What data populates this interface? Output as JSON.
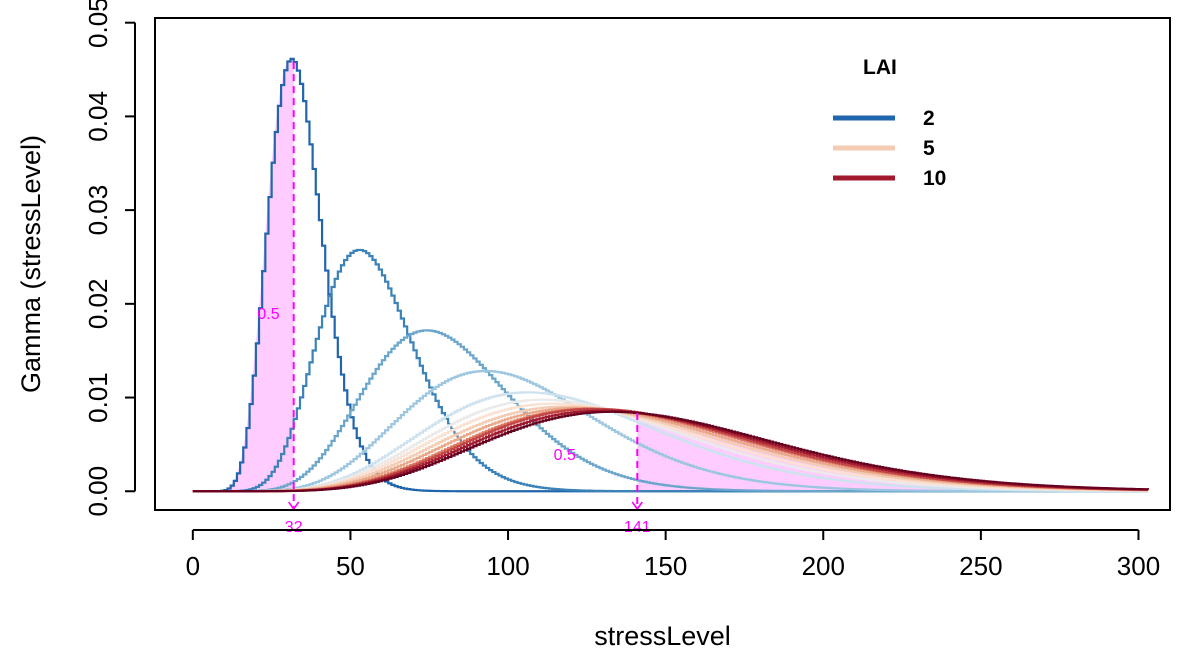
{
  "chart_data": {
    "type": "line",
    "xlabel": "stressLevel",
    "ylabel": "Gamma (stressLevel)",
    "xlim": [
      -12,
      310
    ],
    "ylim": [
      -0.002,
      0.0505
    ],
    "x_ticks": [
      0,
      50,
      100,
      150,
      200,
      250,
      300
    ],
    "y_ticks": [
      0.0,
      0.01,
      0.02,
      0.03,
      0.04,
      0.05
    ],
    "y_tick_labels": [
      "0.00",
      "0.01",
      "0.02",
      "0.03",
      "0.04",
      "0.05"
    ],
    "grid": false,
    "legend": {
      "title": "LAI",
      "position": "top-right",
      "entries": [
        {
          "label": "2",
          "color": "#2166ac"
        },
        {
          "label": "5",
          "color": "#f4cbb3"
        },
        {
          "label": "10",
          "color": "#a11a2e"
        }
      ]
    },
    "series": [
      {
        "shape": 13.97,
        "rate": 0.4192,
        "color": "#2166ac"
      },
      {
        "shape": 12.61,
        "rate": 0.2216,
        "color": "#3a82b8"
      },
      {
        "shape": 11.25,
        "rate": 0.1389,
        "color": "#6aa6cc"
      },
      {
        "shape": 10.0,
        "rate": 0.0974,
        "color": "#9cc6e0"
      },
      {
        "shape": 9.0,
        "rate": 0.0756,
        "color": "#cde2ee"
      },
      {
        "shape": 8.5,
        "rate": 0.0678,
        "color": "#eaeaea"
      },
      {
        "shape": 8.3,
        "rate": 0.064,
        "color": "#fae1d2"
      },
      {
        "shape": 8.3,
        "rate": 0.0619,
        "color": "#f4cbb3"
      },
      {
        "shape": 8.5,
        "rate": 0.0617,
        "color": "#eaa88a"
      },
      {
        "shape": 8.8,
        "rate": 0.0623,
        "color": "#dc7b62"
      },
      {
        "shape": 9.0,
        "rate": 0.063,
        "color": "#c44546"
      },
      {
        "shape": 9.0,
        "rate": 0.0617,
        "color": "#a11a2e"
      },
      {
        "shape": 9.1,
        "rate": 0.0611,
        "color": "#67001f"
      }
    ],
    "annotations": [
      {
        "kind": "median",
        "x": 32,
        "label": "32",
        "area_label": "0.5",
        "area_label_x": 24,
        "area_label_y": 0.019
      },
      {
        "kind": "median",
        "x": 141,
        "label": "141",
        "area_label": "0.5",
        "area_label_x": 118,
        "area_label_y": 0.004
      }
    ],
    "shade_color": "#ffccff",
    "annotation_color": "#ff00ff"
  }
}
